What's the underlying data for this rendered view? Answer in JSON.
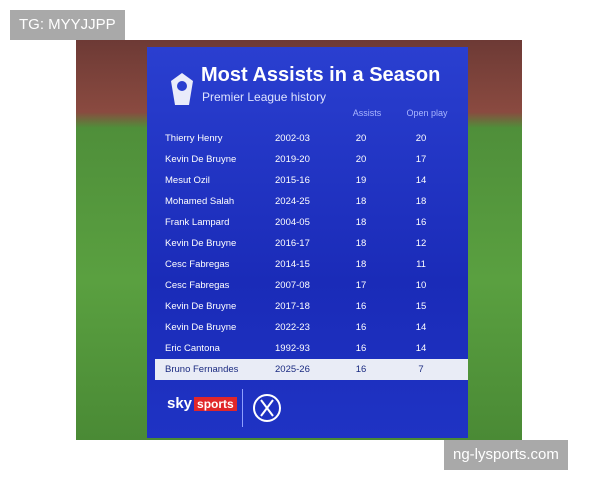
{
  "watermark_top": "TG: MYYJJPP",
  "header": {
    "title": "Most Assists in a Season",
    "subtitle": "Premier League history"
  },
  "table": {
    "columns": [
      "Assists",
      "Open play"
    ],
    "rows": [
      [
        "Thierry Henry",
        "2002-03",
        "20",
        "20"
      ],
      [
        "Kevin De Bruyne",
        "2019-20",
        "20",
        "17"
      ],
      [
        "Mesut Ozil",
        "2015-16",
        "19",
        "14"
      ],
      [
        "Mohamed Salah",
        "2024-25",
        "18",
        "18"
      ],
      [
        "Frank Lampard",
        "2004-05",
        "18",
        "16"
      ],
      [
        "Kevin De Bruyne",
        "2016-17",
        "18",
        "12"
      ],
      [
        "Cesc Fabregas",
        "2014-15",
        "18",
        "11"
      ],
      [
        "Cesc Fabregas",
        "2007-08",
        "17",
        "10"
      ],
      [
        "Kevin De Bruyne",
        "2017-18",
        "16",
        "15"
      ],
      [
        "Kevin De Bruyne",
        "2022-23",
        "16",
        "14"
      ],
      [
        "Eric Cantona",
        "1992-93",
        "16",
        "14"
      ],
      [
        "Bruno Fernandes",
        "2025-26",
        "16",
        "7"
      ]
    ]
  },
  "logo": {
    "sky": "sky",
    "sports": "sports"
  },
  "watermark_bottom": "ng-lysports.com"
}
